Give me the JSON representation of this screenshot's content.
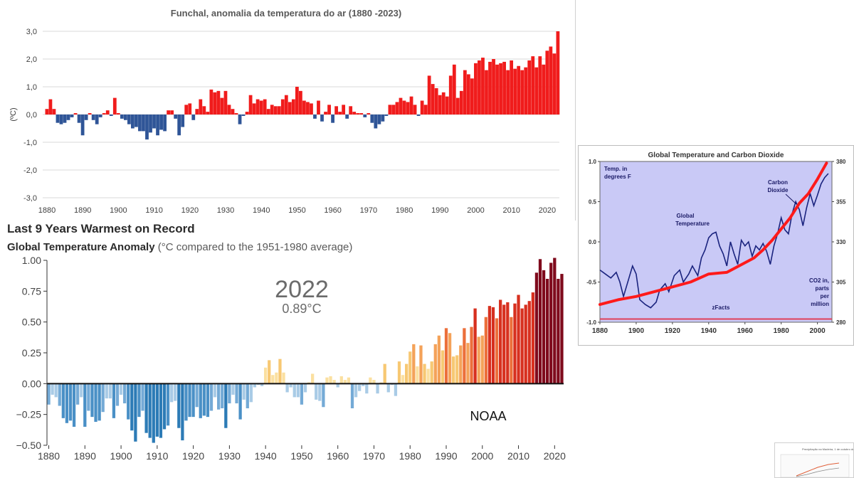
{
  "chart_data": [
    {
      "type": "bar",
      "title": "Funchal, anomalia da temperatura do ar (1880 -2023)",
      "ylabel": "(ºC)",
      "xlabel": "",
      "ylim": [
        -3,
        3
      ],
      "yticks": [
        "3,0",
        "2,0",
        "1,0",
        "0,0",
        "-1,0",
        "-2,0",
        "-3,0"
      ],
      "xticks": [
        "1880",
        "1890",
        "1900",
        "1910",
        "1920",
        "1930",
        "1940",
        "1950",
        "1960",
        "1970",
        "1980",
        "1990",
        "2000",
        "2010",
        "2020"
      ],
      "grid": true,
      "colors": {
        "positive": "#f01c1c",
        "negative": "#2f5597"
      },
      "x": [
        1880,
        1881,
        1882,
        1883,
        1884,
        1885,
        1886,
        1887,
        1888,
        1889,
        1890,
        1891,
        1892,
        1893,
        1894,
        1895,
        1896,
        1897,
        1898,
        1899,
        1900,
        1901,
        1902,
        1903,
        1904,
        1905,
        1906,
        1907,
        1908,
        1909,
        1910,
        1911,
        1912,
        1913,
        1914,
        1915,
        1916,
        1917,
        1918,
        1919,
        1920,
        1921,
        1922,
        1923,
        1924,
        1925,
        1926,
        1927,
        1928,
        1929,
        1930,
        1931,
        1932,
        1933,
        1934,
        1935,
        1936,
        1937,
        1938,
        1939,
        1940,
        1941,
        1942,
        1943,
        1944,
        1945,
        1946,
        1947,
        1948,
        1949,
        1950,
        1951,
        1952,
        1953,
        1954,
        1955,
        1956,
        1957,
        1958,
        1959,
        1960,
        1961,
        1962,
        1963,
        1964,
        1965,
        1966,
        1967,
        1968,
        1969,
        1970,
        1971,
        1972,
        1973,
        1974,
        1975,
        1976,
        1977,
        1978,
        1979,
        1980,
        1981,
        1982,
        1983,
        1984,
        1985,
        1986,
        1987,
        1988,
        1989,
        1990,
        1991,
        1992,
        1993,
        1994,
        1995,
        1996,
        1997,
        1998,
        1999,
        2000,
        2001,
        2002,
        2003,
        2004,
        2005,
        2006,
        2007,
        2008,
        2009,
        2010,
        2011,
        2012,
        2013,
        2014,
        2015,
        2016,
        2017,
        2018,
        2019,
        2020,
        2021,
        2022,
        2023
      ],
      "values": [
        0.2,
        0.55,
        0.2,
        -0.3,
        -0.35,
        -0.3,
        -0.2,
        -0.1,
        0.05,
        -0.3,
        -0.75,
        -0.2,
        0.05,
        -0.2,
        -0.35,
        -0.1,
        0.05,
        0.15,
        -0.05,
        0.6,
        0.05,
        -0.15,
        -0.2,
        -0.35,
        -0.5,
        -0.45,
        -0.6,
        -0.6,
        -0.9,
        -0.65,
        -0.5,
        -0.75,
        -0.55,
        -0.6,
        0.15,
        0.15,
        -0.15,
        -0.75,
        -0.45,
        0.35,
        0.4,
        -0.2,
        0.2,
        0.55,
        0.3,
        0.1,
        0.9,
        0.8,
        0.85,
        0.6,
        0.85,
        0.35,
        0.2,
        0.05,
        -0.35,
        -0.05,
        0.1,
        0.7,
        0.4,
        0.55,
        0.5,
        0.55,
        0.2,
        0.35,
        0.3,
        0.3,
        0.55,
        0.7,
        0.45,
        0.55,
        1.0,
        0.85,
        0.5,
        0.45,
        0.4,
        -0.15,
        0.5,
        -0.25,
        0.1,
        0.35,
        -0.3,
        0.3,
        0.1,
        0.35,
        -0.15,
        0.3,
        0.1,
        0.05,
        0.05,
        -0.1,
        0.05,
        -0.3,
        -0.5,
        -0.35,
        -0.25,
        -0.05,
        0.35,
        0.35,
        0.45,
        0.6,
        0.5,
        0.45,
        0.65,
        0.35,
        -0.05,
        0.5,
        0.35,
        1.4,
        1.1,
        0.95,
        0.7,
        0.8,
        0.65,
        1.4,
        1.8,
        0.6,
        0.85,
        1.6,
        1.45,
        1.3,
        1.85,
        1.95,
        2.05,
        1.6,
        1.9,
        2.0,
        1.8,
        1.85,
        1.9,
        1.6,
        1.95,
        1.65,
        1.75,
        1.6,
        1.7,
        1.95,
        2.1,
        1.7,
        2.1,
        1.8,
        2.3,
        2.45,
        2.2,
        3.0
      ]
    },
    {
      "type": "bar",
      "title": "Last 9 Years Warmest on Record",
      "subtitle_bold": "Global Temperature Anomaly",
      "subtitle_rest": " (°C compared to the 1951-1980 average)",
      "annotation_year": "2022",
      "annotation_value": "0.89°C",
      "watermark": "NOAA",
      "ylim": [
        -0.5,
        1.0
      ],
      "yticks": [
        "1.00",
        "0.75",
        "0.50",
        "0.25",
        "0.00",
        "−0.25",
        "−0.50"
      ],
      "xticks": [
        "1880",
        "1890",
        "1900",
        "1910",
        "1920",
        "1930",
        "1940",
        "1950",
        "1960",
        "1970",
        "1980",
        "1990",
        "2000",
        "2010",
        "2020"
      ],
      "x": [
        1880,
        1881,
        1882,
        1883,
        1884,
        1885,
        1886,
        1887,
        1888,
        1889,
        1890,
        1891,
        1892,
        1893,
        1894,
        1895,
        1896,
        1897,
        1898,
        1899,
        1900,
        1901,
        1902,
        1903,
        1904,
        1905,
        1906,
        1907,
        1908,
        1909,
        1910,
        1911,
        1912,
        1913,
        1914,
        1915,
        1916,
        1917,
        1918,
        1919,
        1920,
        1921,
        1922,
        1923,
        1924,
        1925,
        1926,
        1927,
        1928,
        1929,
        1930,
        1931,
        1932,
        1933,
        1934,
        1935,
        1936,
        1937,
        1938,
        1939,
        1940,
        1941,
        1942,
        1943,
        1944,
        1945,
        1946,
        1947,
        1948,
        1949,
        1950,
        1951,
        1952,
        1953,
        1954,
        1955,
        1956,
        1957,
        1958,
        1959,
        1960,
        1961,
        1962,
        1963,
        1964,
        1965,
        1966,
        1967,
        1968,
        1969,
        1970,
        1971,
        1972,
        1973,
        1974,
        1975,
        1976,
        1977,
        1978,
        1979,
        1980,
        1981,
        1982,
        1983,
        1984,
        1985,
        1986,
        1987,
        1988,
        1989,
        1990,
        1991,
        1992,
        1993,
        1994,
        1995,
        1996,
        1997,
        1998,
        1999,
        2000,
        2001,
        2002,
        2003,
        2004,
        2005,
        2006,
        2007,
        2008,
        2009,
        2010,
        2011,
        2012,
        2013,
        2014,
        2015,
        2016,
        2017,
        2018,
        2019,
        2020,
        2021,
        2022
      ],
      "values": [
        -0.17,
        -0.09,
        -0.11,
        -0.18,
        -0.28,
        -0.32,
        -0.3,
        -0.35,
        -0.17,
        -0.11,
        -0.35,
        -0.22,
        -0.27,
        -0.31,
        -0.3,
        -0.23,
        -0.12,
        -0.12,
        -0.28,
        -0.18,
        -0.09,
        -0.16,
        -0.29,
        -0.38,
        -0.47,
        -0.27,
        -0.22,
        -0.4,
        -0.44,
        -0.48,
        -0.43,
        -0.44,
        -0.37,
        -0.34,
        -0.15,
        -0.14,
        -0.36,
        -0.46,
        -0.3,
        -0.27,
        -0.27,
        -0.19,
        -0.28,
        -0.26,
        -0.27,
        -0.22,
        -0.11,
        -0.21,
        -0.2,
        -0.36,
        -0.16,
        -0.09,
        -0.16,
        -0.29,
        -0.13,
        -0.2,
        -0.15,
        -0.03,
        -0.01,
        -0.02,
        0.13,
        0.19,
        0.07,
        0.09,
        0.2,
        0.09,
        -0.07,
        -0.03,
        -0.11,
        -0.11,
        -0.17,
        -0.07,
        0.01,
        0.08,
        -0.13,
        -0.14,
        -0.19,
        0.05,
        0.06,
        0.03,
        -0.03,
        0.06,
        0.03,
        0.05,
        -0.2,
        -0.11,
        -0.06,
        -0.02,
        -0.08,
        0.05,
        0.03,
        -0.08,
        0.01,
        0.16,
        -0.07,
        -0.01,
        -0.1,
        0.18,
        0.07,
        0.16,
        0.26,
        0.32,
        0.14,
        0.31,
        0.16,
        0.12,
        0.18,
        0.32,
        0.39,
        0.27,
        0.45,
        0.41,
        0.22,
        0.23,
        0.31,
        0.45,
        0.33,
        0.46,
        0.61,
        0.38,
        0.39,
        0.54,
        0.63,
        0.62,
        0.53,
        0.68,
        0.64,
        0.66,
        0.54,
        0.65,
        0.72,
        0.61,
        0.64,
        0.67,
        0.74,
        0.9,
        1.01,
        0.92,
        0.85,
        0.98,
        1.02,
        0.85,
        0.89
      ]
    },
    {
      "type": "line",
      "title": "Global Temperature and Carbon Dioxide",
      "labels": {
        "temp_units": "Temp. in degrees F",
        "carbon": "Carbon Dioxide",
        "global": "Global Temperature",
        "co2_units": "CO2 in, parts per million",
        "source": "zFacts"
      },
      "xticks": [
        "1880",
        "1900",
        "1920",
        "1940",
        "1960",
        "1980",
        "2000"
      ],
      "yticks_left": [
        "1.0",
        "0.5",
        "0.0",
        "-0.5",
        "-1.0"
      ],
      "yticks_right": [
        "380",
        "355",
        "330",
        "305",
        "280"
      ],
      "ylim_left": [
        -1.0,
        1.0
      ],
      "ylim_right": [
        280,
        380
      ],
      "xlim": [
        1880,
        2008
      ],
      "series": [
        {
          "name": "Global Temperature",
          "axis": "left",
          "color": "#1a237e",
          "x": [
            1880,
            1883,
            1886,
            1889,
            1891,
            1893,
            1896,
            1898,
            1900,
            1902,
            1905,
            1908,
            1911,
            1913,
            1916,
            1918,
            1921,
            1924,
            1926,
            1929,
            1931,
            1934,
            1936,
            1938,
            1940,
            1942,
            1944,
            1946,
            1948,
            1950,
            1952,
            1954,
            1956,
            1958,
            1960,
            1962,
            1964,
            1966,
            1968,
            1970,
            1972,
            1974,
            1976,
            1978,
            1980,
            1982,
            1984,
            1986,
            1988,
            1990,
            1992,
            1994,
            1996,
            1998,
            2000,
            2002,
            2004,
            2006
          ],
          "values": [
            -0.35,
            -0.4,
            -0.45,
            -0.38,
            -0.5,
            -0.68,
            -0.45,
            -0.3,
            -0.4,
            -0.72,
            -0.78,
            -0.82,
            -0.75,
            -0.6,
            -0.52,
            -0.62,
            -0.42,
            -0.35,
            -0.5,
            -0.4,
            -0.3,
            -0.42,
            -0.2,
            -0.1,
            0.05,
            0.1,
            0.12,
            -0.05,
            -0.15,
            -0.3,
            0.0,
            -0.15,
            -0.28,
            0.02,
            -0.05,
            0.0,
            -0.18,
            -0.05,
            -0.1,
            -0.02,
            -0.12,
            -0.28,
            -0.05,
            0.1,
            0.3,
            0.15,
            0.1,
            0.35,
            0.5,
            0.4,
            0.2,
            0.42,
            0.6,
            0.45,
            0.58,
            0.72,
            0.8,
            0.85
          ]
        },
        {
          "name": "Carbon Dioxide",
          "axis": "right",
          "color": "#ff1a1a",
          "x": [
            1880,
            1890,
            1900,
            1910,
            1920,
            1930,
            1940,
            1950,
            1960,
            1965,
            1970,
            1975,
            1980,
            1985,
            1990,
            1995,
            2000,
            2005
          ],
          "values": [
            291,
            294,
            296,
            299,
            302,
            305,
            310,
            311,
            317,
            320,
            325,
            331,
            338,
            345,
            354,
            360,
            369,
            379
          ]
        },
        {
          "name": "Baseline",
          "axis": "left",
          "color": "#e0405a",
          "x": [
            1880,
            2008
          ],
          "values": [
            -0.96,
            -0.96
          ]
        }
      ]
    }
  ],
  "thumbnail": {
    "caption": "Precipitação na Madeira, 1 de outubro de 2022 a 3..."
  }
}
